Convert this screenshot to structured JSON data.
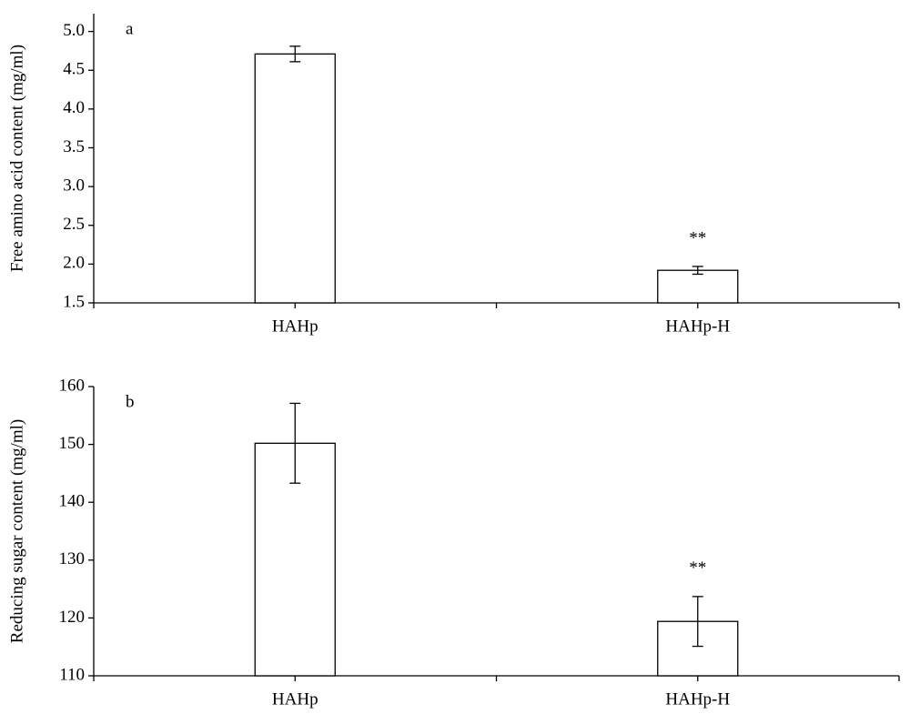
{
  "chart_data": [
    {
      "type": "bar",
      "label": "a",
      "ylabel": "Free amino acid content (mg/ml)",
      "categories": [
        "HAHp",
        "HAHp-H"
      ],
      "values": [
        4.71,
        1.92
      ],
      "errors": [
        0.1,
        0.05
      ],
      "annotations": [
        null,
        "**"
      ],
      "color": "#ffffff",
      "ylim": [
        1.5,
        5.23
      ],
      "yticks": [
        {
          "value": 1.5,
          "label": "1.5"
        },
        {
          "value": 2,
          "label": "2.0"
        },
        {
          "value": 2.5,
          "label": "2.5"
        },
        {
          "value": 3,
          "label": "3.0"
        },
        {
          "value": 3.5,
          "label": "3.5"
        },
        {
          "value": 4,
          "label": "4.0"
        },
        {
          "value": 4.5,
          "label": "4.5"
        },
        {
          "value": 5,
          "label": "5.0"
        }
      ]
    },
    {
      "type": "bar",
      "label": "b",
      "ylabel": "Reducing sugar content (mg/ml)",
      "categories": [
        "HAHp",
        "HAHp-H"
      ],
      "values": [
        150.2,
        119.4
      ],
      "errors": [
        6.9,
        4.3
      ],
      "annotations": [
        null,
        "**"
      ],
      "color": "#ffffff",
      "ylim": [
        110,
        160
      ],
      "yticks": [
        110,
        120,
        130,
        140,
        150,
        160
      ]
    }
  ]
}
